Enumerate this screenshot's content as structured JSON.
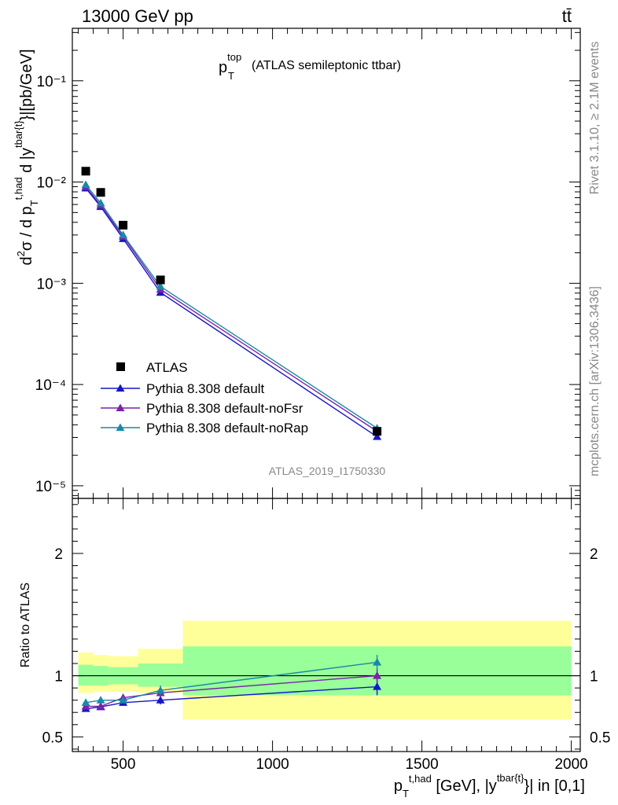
{
  "header": {
    "energy_label": "13000 GeV pp",
    "process_label": "tt̄",
    "rivet_label": "Rivet 3.1.10, ≥ 2.1M events",
    "mcplots_label": "mcplots.cern.ch [arXiv:1306.3436]",
    "analysis_label": "ATLAS_2019_I1750330"
  },
  "chart_data": {
    "type": "line",
    "title": "p_T^top (ATLAS semileptonic ttbar)",
    "title_main": "p",
    "title_sub": "T",
    "title_sup": "top",
    "title_rest": "(ATLAS semileptonic ttbar)",
    "xlabel": "p_T^{t,had} [GeV], |y^{tbar{t}}| in [0,1]",
    "ylabel": "d²σ / d p_T^{t,had} d |y^{tbar{t}}|[pb/GeV]",
    "ratio_ylabel": "Ratio to ATLAS",
    "x_scale": "linear",
    "y_scale": "log",
    "xlim": [
      330,
      2030
    ],
    "ylim": [
      7.5e-06,
      0.33
    ],
    "ratio_ylim": [
      0.38,
      2.45
    ],
    "x_ticks": [
      "500",
      "1000",
      "1500",
      "2000"
    ],
    "y_ticks": [
      "10⁻⁵",
      "10⁻⁴",
      "10⁻³",
      "10⁻²",
      "10⁻¹"
    ],
    "ratio_ticks": [
      "0.5",
      "1",
      "2"
    ],
    "legend_position": "lower-left",
    "x": [
      375,
      425,
      500,
      625,
      1350
    ],
    "bin_edges": [
      350,
      400,
      450,
      550,
      700,
      2000
    ],
    "data": {
      "name": "ATLAS",
      "values": [
        0.0128,
        0.0079,
        0.00375,
        0.00108,
        3.45e-05
      ],
      "band_inner": [
        [
          0.92,
          1.09
        ],
        [
          0.92,
          1.08
        ],
        [
          0.93,
          1.07
        ],
        [
          0.91,
          1.1
        ],
        [
          0.84,
          1.24
        ]
      ],
      "band_outer": [
        [
          0.86,
          1.19
        ],
        [
          0.87,
          1.17
        ],
        [
          0.87,
          1.16
        ],
        [
          0.86,
          1.22
        ],
        [
          0.64,
          1.45
        ]
      ]
    },
    "series": [
      {
        "name": "Pythia 8.308 default",
        "color": "#1616c8",
        "values": [
          0.0087,
          0.0057,
          0.00275,
          0.00081,
          3.05e-05
        ],
        "ratio": [
          0.73,
          0.745,
          0.78,
          0.8,
          0.91
        ],
        "ratio_err": [
          0.02,
          0.02,
          0.02,
          0.035,
          0.07
        ]
      },
      {
        "name": "Pythia 8.308 default-noFsr",
        "color": "#7a22aa",
        "values": [
          0.009,
          0.0059,
          0.0029,
          0.00087,
          3.45e-05
        ],
        "ratio": [
          0.75,
          0.75,
          0.82,
          0.86,
          1.0
        ],
        "ratio_err": [
          0.02,
          0.02,
          0.025,
          0.04,
          0.06
        ]
      },
      {
        "name": "Pythia 8.308 default-noRap",
        "color": "#1a88a8",
        "values": [
          0.0094,
          0.0062,
          0.003,
          0.00093,
          3.7e-05
        ],
        "ratio": [
          0.78,
          0.8,
          0.8,
          0.88,
          1.11
        ],
        "ratio_err": [
          0.02,
          0.02,
          0.02,
          0.04,
          0.06
        ]
      }
    ]
  }
}
